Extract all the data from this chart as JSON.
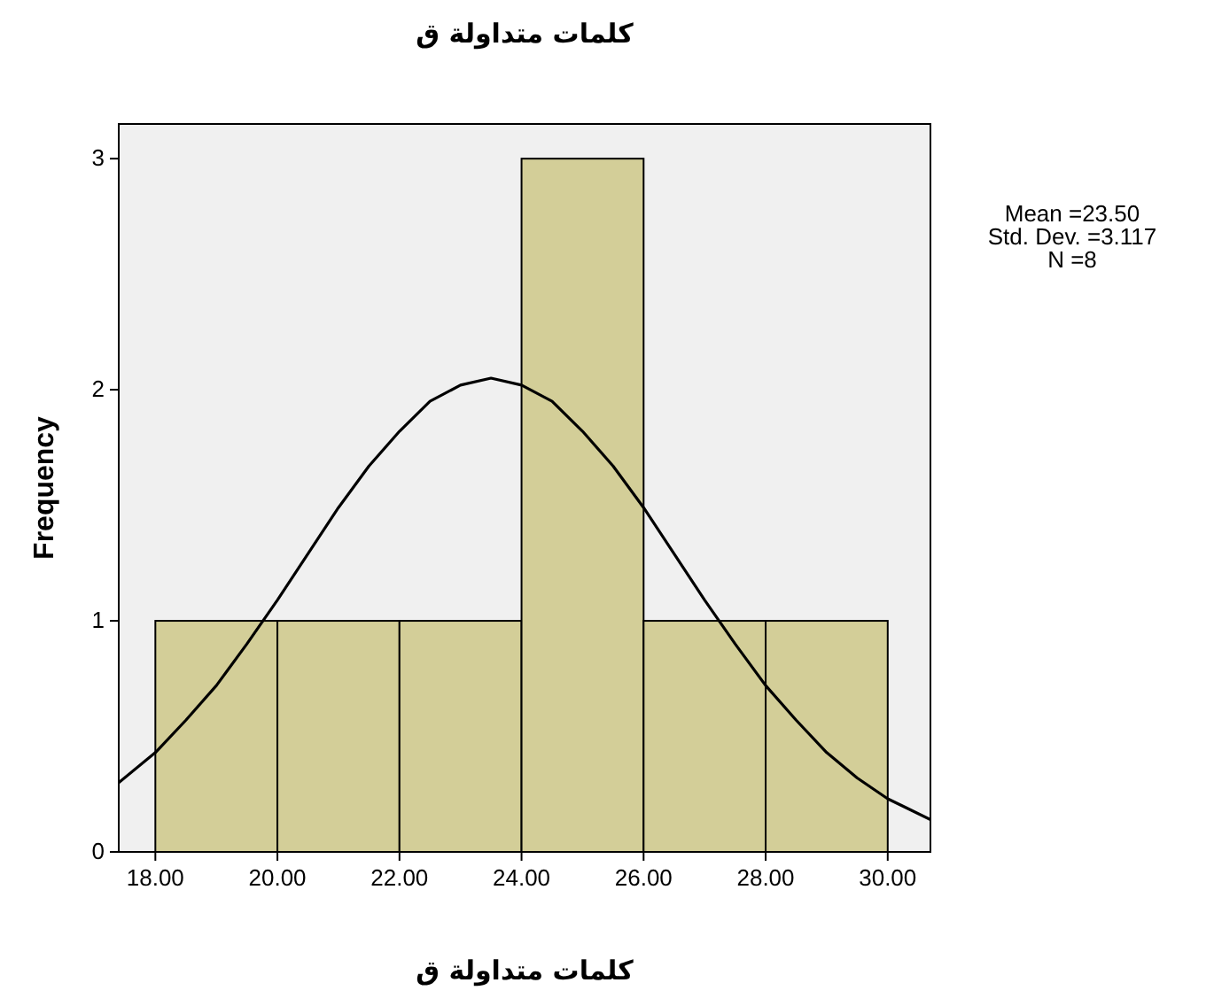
{
  "chart_data": {
    "type": "histogram",
    "title": "كلمات متداولة ق",
    "xlabel": "كلمات متداولة ق",
    "ylabel": "Frequency",
    "bins": [
      18,
      20,
      22,
      24,
      26,
      28,
      30
    ],
    "values": [
      1,
      1,
      1,
      3,
      1,
      1
    ],
    "color": "#d3ce98",
    "series": [
      {
        "type": "line",
        "color": "#000000",
        "x": [
          17.4,
          18,
          18.5,
          19,
          19.5,
          20,
          20.5,
          21,
          21.5,
          22,
          22.5,
          23,
          23.5,
          24,
          24.5,
          25,
          25.5,
          26,
          26.5,
          27,
          27.5,
          28,
          28.5,
          29,
          29.5,
          30,
          30.7
        ],
        "values": [
          0.3,
          0.43,
          0.57,
          0.72,
          0.9,
          1.09,
          1.29,
          1.49,
          1.67,
          1.82,
          1.95,
          2.02,
          2.05,
          2.02,
          1.95,
          1.82,
          1.67,
          1.49,
          1.29,
          1.09,
          0.9,
          0.72,
          0.57,
          0.43,
          0.32,
          0.23,
          0.14
        ]
      }
    ],
    "xlim": [
      17.4,
      30.7
    ],
    "ylim": [
      0,
      3.15
    ],
    "xticks": [
      {
        "value": 18,
        "label": "18.00"
      },
      {
        "value": 20,
        "label": "20.00"
      },
      {
        "value": 22,
        "label": "22.00"
      },
      {
        "value": 24,
        "label": "24.00"
      },
      {
        "value": 26,
        "label": "26.00"
      },
      {
        "value": 28,
        "label": "28.00"
      },
      {
        "value": 30,
        "label": "30.00"
      }
    ],
    "yticks": [
      0,
      1,
      2,
      3
    ],
    "annotations": [
      "Mean =23.50",
      "Std. Dev. =3.117",
      "N =8"
    ]
  }
}
